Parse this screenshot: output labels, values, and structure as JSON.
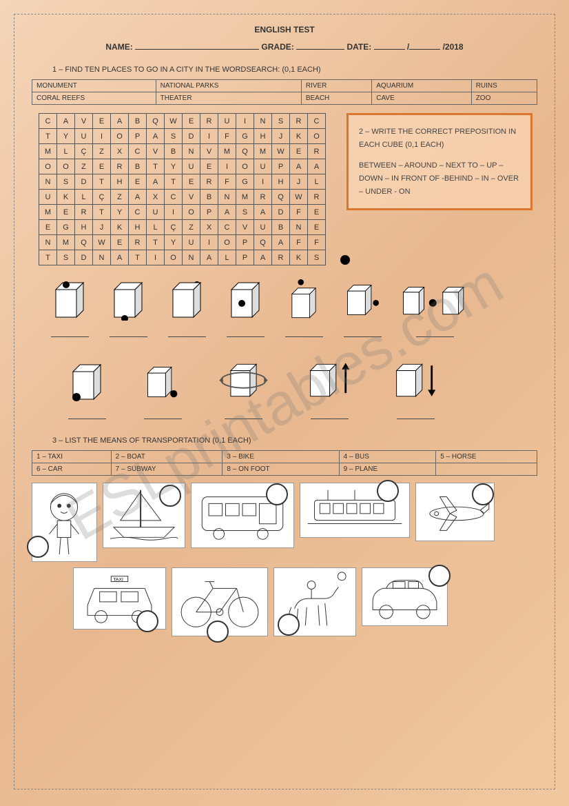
{
  "title": "ENGLISH TEST",
  "header": {
    "name_label": "NAME:",
    "grade_label": "GRADE:",
    "date_label": "DATE:",
    "year": "/2018"
  },
  "watermark": "ESLprintables.com",
  "q1": {
    "text": "1 – FIND TEN PLACES TO GO IN A CITY IN THE WORDSEARCH: (0,1 EACH)",
    "words": [
      [
        "MONUMENT",
        "NATIONAL PARKS",
        "RIVER",
        "AQUARIUM",
        "RUINS"
      ],
      [
        "CORAL REEFS",
        "THEATER",
        "BEACH",
        "CAVE",
        "ZOO"
      ]
    ],
    "grid": [
      [
        "C",
        "A",
        "V",
        "E",
        "A",
        "B",
        "Q",
        "W",
        "E",
        "R",
        "U",
        "I",
        "N",
        "S",
        "R",
        "C"
      ],
      [
        "T",
        "Y",
        "U",
        "I",
        "O",
        "P",
        "A",
        "S",
        "D",
        "I",
        "F",
        "G",
        "H",
        "J",
        "K",
        "O"
      ],
      [
        "M",
        "L",
        "Ç",
        "Z",
        "X",
        "C",
        "V",
        "B",
        "N",
        "V",
        "M",
        "Q",
        "M",
        "W",
        "E",
        "R"
      ],
      [
        "O",
        "O",
        "Z",
        "E",
        "R",
        "B",
        "T",
        "Y",
        "U",
        "E",
        "I",
        "O",
        "U",
        "P",
        "A",
        "A"
      ],
      [
        "N",
        "S",
        "D",
        "T",
        "H",
        "E",
        "A",
        "T",
        "E",
        "R",
        "F",
        "G",
        "I",
        "H",
        "J",
        "L"
      ],
      [
        "U",
        "K",
        "L",
        "Ç",
        "Z",
        "A",
        "X",
        "C",
        "V",
        "B",
        "N",
        "M",
        "R",
        "Q",
        "W",
        "R"
      ],
      [
        "M",
        "E",
        "R",
        "T",
        "Y",
        "C",
        "U",
        "I",
        "O",
        "P",
        "A",
        "S",
        "A",
        "D",
        "F",
        "E"
      ],
      [
        "E",
        "G",
        "H",
        "J",
        "K",
        "H",
        "L",
        "Ç",
        "Z",
        "X",
        "C",
        "V",
        "U",
        "B",
        "N",
        "E"
      ],
      [
        "N",
        "M",
        "Q",
        "W",
        "E",
        "R",
        "T",
        "Y",
        "U",
        "I",
        "O",
        "P",
        "Q",
        "A",
        "F",
        "F"
      ],
      [
        "T",
        "S",
        "D",
        "N",
        "A",
        "T",
        "I",
        "O",
        "N",
        "A",
        "L",
        "P",
        "A",
        "R",
        "K",
        "S"
      ]
    ]
  },
  "q2": {
    "title": "2 – WRITE THE CORRECT PREPOSITION IN EACH CUBE (0,1 EACH)",
    "prepositions": "BETWEEN – AROUND – NEXT TO – UP – DOWN – IN FRONT OF  -BEHIND – IN – OVER – UNDER - ON"
  },
  "q3": {
    "text": "3 – LIST THE MEANS OF TRANSPORTATION (0,1 EACH)",
    "items": [
      [
        "1 – TAXI",
        "2 – BOAT",
        "3 – BIKE",
        "4 – BUS",
        "5 – HORSE"
      ],
      [
        "6 – CAR",
        "7 – SUBWAY",
        "8 – ON FOOT",
        "9 – PLANE",
        ""
      ]
    ]
  }
}
